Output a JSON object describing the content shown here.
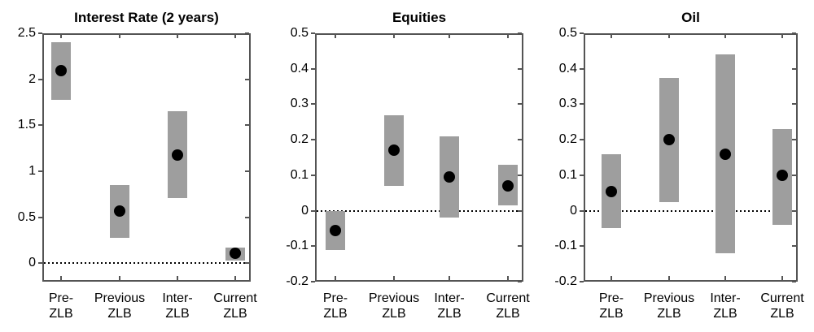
{
  "style": {
    "background": "#ffffff",
    "bar_color": "#9e9e9e",
    "dot_color": "#000000",
    "axis_color": "#545454",
    "tick_color": "#545454",
    "zero_line_color": "#000000",
    "text_color": "#000000"
  },
  "chart_data": [
    {
      "type": "bar",
      "subtype": "range-with-median-dot",
      "title": "Interest Rate (2 years)",
      "categories": [
        "Pre-ZLB",
        "Previous ZLB",
        "Inter-ZLB",
        "Current ZLB"
      ],
      "category_labels": [
        [
          "Pre-",
          "ZLB"
        ],
        [
          "Previous",
          "ZLB"
        ],
        [
          "Inter-",
          "ZLB"
        ],
        [
          "Current",
          "ZLB"
        ]
      ],
      "xlabel": "",
      "ylabel": "",
      "ylim": [
        -0.2,
        2.5
      ],
      "yticks": [
        0,
        0.5,
        1,
        1.5,
        2,
        2.5
      ],
      "ytick_labels": [
        "0",
        "0.5",
        "1",
        "1.5",
        "2",
        "2.5"
      ],
      "grid": false,
      "legend": null,
      "zero_line": 0,
      "bars": [
        {
          "category": "Pre-ZLB",
          "low": 1.78,
          "high": 2.4,
          "median": 2.09
        },
        {
          "category": "Previous ZLB",
          "low": 0.28,
          "high": 0.85,
          "median": 0.57
        },
        {
          "category": "Inter-ZLB",
          "low": 0.71,
          "high": 1.65,
          "median": 1.18
        },
        {
          "category": "Current ZLB",
          "low": 0.03,
          "high": 0.17,
          "median": 0.11
        }
      ]
    },
    {
      "type": "bar",
      "subtype": "range-with-median-dot",
      "title": "Equities",
      "categories": [
        "Pre-ZLB",
        "Previous ZLB",
        "Inter-ZLB",
        "Current ZLB"
      ],
      "category_labels": [
        [
          "Pre-",
          "ZLB"
        ],
        [
          "Previous",
          "ZLB"
        ],
        [
          "Inter-",
          "ZLB"
        ],
        [
          "Current",
          "ZLB"
        ]
      ],
      "xlabel": "",
      "ylabel": "",
      "ylim": [
        -0.2,
        0.5
      ],
      "yticks": [
        -0.2,
        -0.1,
        0,
        0.1,
        0.2,
        0.3,
        0.4,
        0.5
      ],
      "ytick_labels": [
        "-0.2",
        "-0.1",
        "0",
        "0.1",
        "0.2",
        "0.3",
        "0.4",
        "0.5"
      ],
      "grid": false,
      "legend": null,
      "zero_line": 0,
      "bars": [
        {
          "category": "Pre-ZLB",
          "low": -0.11,
          "high": 0.0,
          "median": -0.055
        },
        {
          "category": "Previous ZLB",
          "low": 0.07,
          "high": 0.27,
          "median": 0.17
        },
        {
          "category": "Inter-ZLB",
          "low": -0.02,
          "high": 0.21,
          "median": 0.095
        },
        {
          "category": "Current ZLB",
          "low": 0.015,
          "high": 0.13,
          "median": 0.07
        }
      ]
    },
    {
      "type": "bar",
      "subtype": "range-with-median-dot",
      "title": "Oil",
      "categories": [
        "Pre-ZLB",
        "Previous ZLB",
        "Inter-ZLB",
        "Current ZLB"
      ],
      "category_labels": [
        [
          "Pre-",
          "ZLB"
        ],
        [
          "Previous",
          "ZLB"
        ],
        [
          "Inter-",
          "ZLB"
        ],
        [
          "Current",
          "ZLB"
        ]
      ],
      "xlabel": "",
      "ylabel": "",
      "ylim": [
        -0.2,
        0.5
      ],
      "yticks": [
        -0.2,
        -0.1,
        0,
        0.1,
        0.2,
        0.3,
        0.4,
        0.5
      ],
      "ytick_labels": [
        "-0.2",
        "-0.1",
        "0",
        "0.1",
        "0.2",
        "0.3",
        "0.4",
        "0.5"
      ],
      "grid": false,
      "legend": null,
      "zero_line": 0,
      "bars": [
        {
          "category": "Pre-ZLB",
          "low": -0.05,
          "high": 0.16,
          "median": 0.055
        },
        {
          "category": "Previous ZLB",
          "low": 0.025,
          "high": 0.375,
          "median": 0.2
        },
        {
          "category": "Inter-ZLB",
          "low": -0.12,
          "high": 0.44,
          "median": 0.16
        },
        {
          "category": "Current ZLB",
          "low": -0.04,
          "high": 0.23,
          "median": 0.1
        }
      ]
    }
  ]
}
